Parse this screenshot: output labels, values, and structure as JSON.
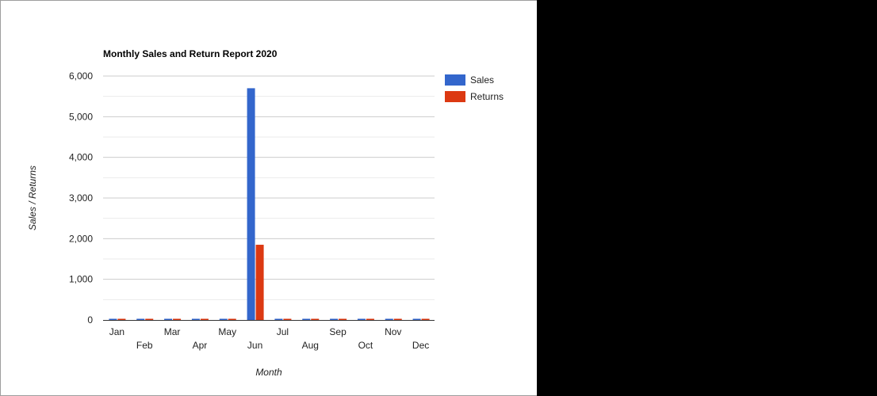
{
  "chart_data": {
    "type": "bar",
    "title": "Monthly Sales and Return Report 2020",
    "xlabel": "Month",
    "ylabel": "Sales / Returns",
    "categories": [
      "Jan",
      "Feb",
      "Mar",
      "Apr",
      "May",
      "Jun",
      "Jul",
      "Aug",
      "Sep",
      "Oct",
      "Nov",
      "Dec"
    ],
    "series": [
      {
        "name": "Sales",
        "color": "#3366cc",
        "values": [
          0,
          0,
          0,
          0,
          0,
          5700,
          0,
          0,
          0,
          0,
          0,
          0
        ]
      },
      {
        "name": "Returns",
        "color": "#dc3912",
        "values": [
          0,
          0,
          0,
          0,
          0,
          1850,
          0,
          0,
          0,
          0,
          0,
          0
        ]
      }
    ],
    "ylim": [
      0,
      6000
    ],
    "yticks": [
      0,
      1000,
      2000,
      3000,
      4000,
      5000,
      6000
    ],
    "ytick_labels": [
      "0",
      "1,000",
      "2,000",
      "3,000",
      "4,000",
      "5,000",
      "6,000"
    ],
    "grid": true,
    "legend_position": "right"
  }
}
